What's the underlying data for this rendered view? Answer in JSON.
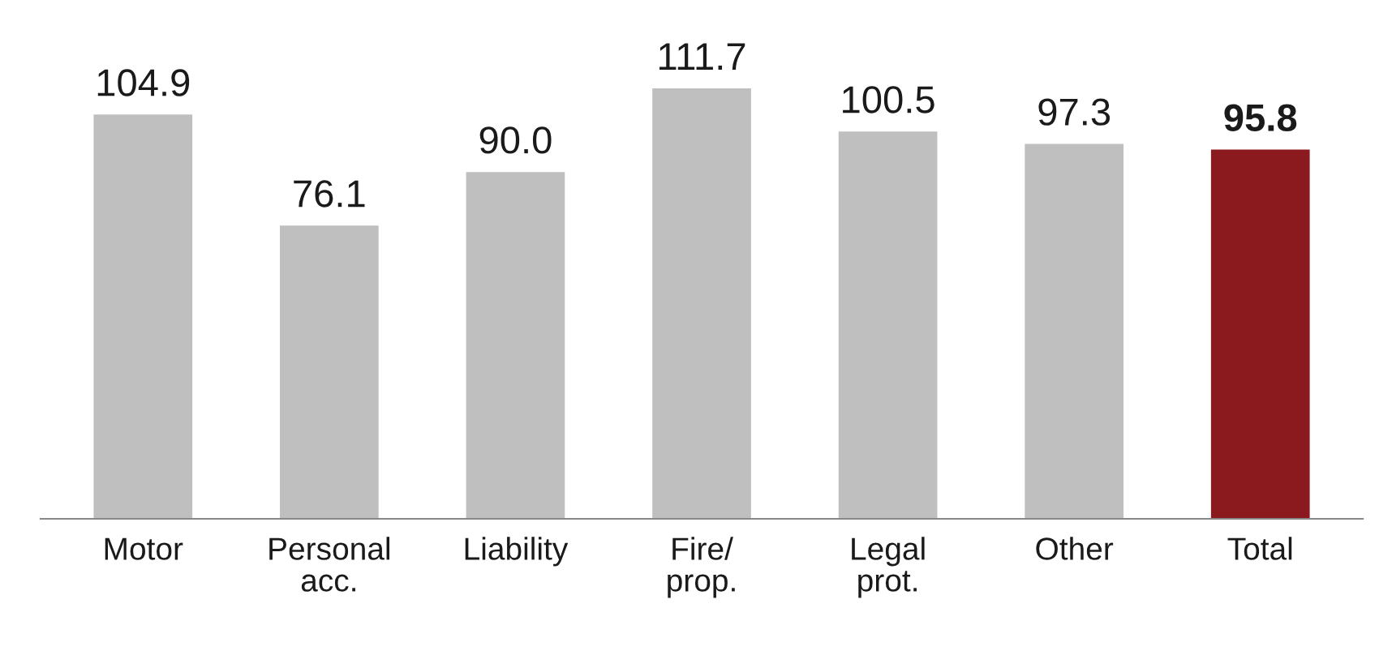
{
  "chart_data": {
    "type": "bar",
    "categories": [
      "Motor",
      "Personal\nacc.",
      "Liability",
      "Fire/\nprop.",
      "Legal\nprot.",
      "Other",
      "Total"
    ],
    "values": [
      104.9,
      76.1,
      90.0,
      111.7,
      100.5,
      97.3,
      95.8
    ],
    "colors": [
      "#bfbfbf",
      "#bfbfbf",
      "#bfbfbf",
      "#bfbfbf",
      "#bfbfbf",
      "#bfbfbf",
      "#8b1a1f"
    ],
    "value_labels": [
      "104.9",
      "76.1",
      "90.0",
      "111.7",
      "100.5",
      "97.3",
      "95.8"
    ],
    "grid": false,
    "legend": false
  }
}
